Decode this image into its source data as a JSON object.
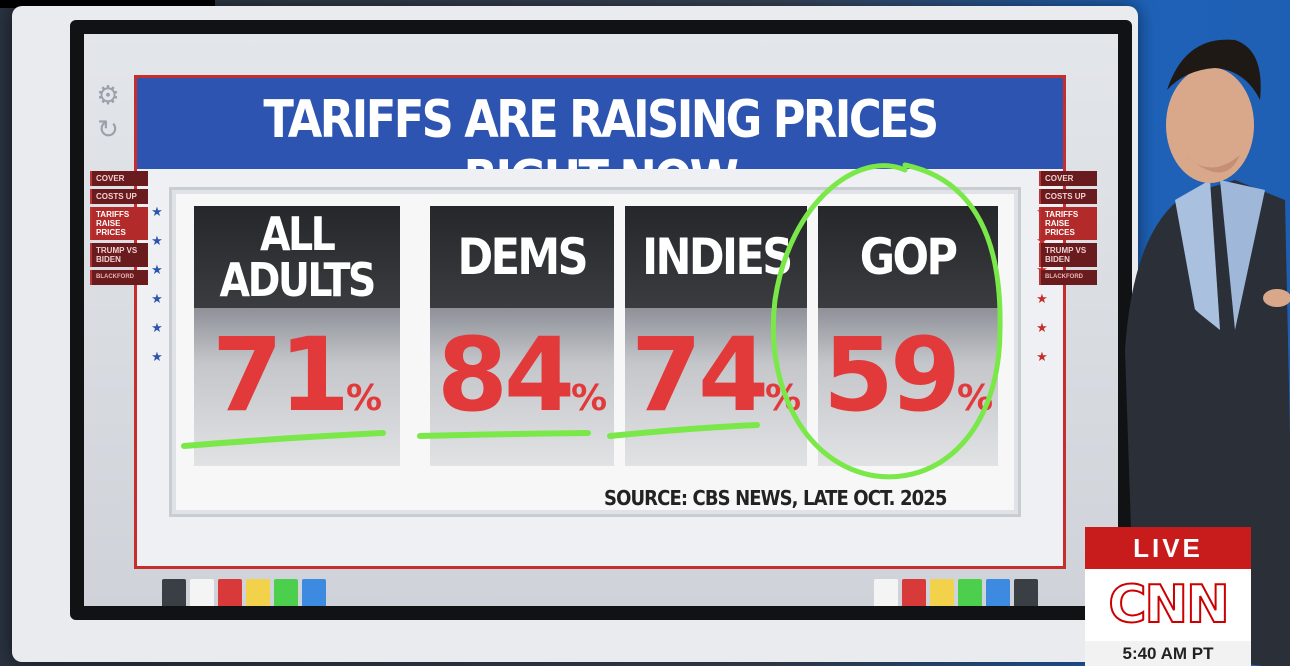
{
  "title": "TARIFFS ARE RAISING PRICES RIGHT NOW",
  "menu_left": [
    "COVER",
    "COSTS UP",
    "TARIFFS RAISE PRICES",
    "TRUMP VS BIDEN",
    "BLACKFORD"
  ],
  "menu_right": [
    "COVER",
    "COSTS UP",
    "TARIFFS RAISE PRICES",
    "TRUMP VS BIDEN",
    "BLACKFORD"
  ],
  "cards": [
    {
      "label": "ALL ADULTS",
      "value": "71",
      "unit": "%"
    },
    {
      "label": "DEMS",
      "value": "84",
      "unit": "%"
    },
    {
      "label": "INDIES",
      "value": "74",
      "unit": "%"
    },
    {
      "label": "GOP",
      "value": "59",
      "unit": "%"
    }
  ],
  "source": "SOURCE: CBS NEWS, LATE OCT. 2025",
  "live": {
    "label": "LIVE",
    "network": "CNN",
    "time": "5:40 AM PT"
  },
  "icons": [
    "gear-icon",
    "refresh-icon",
    "star-icon"
  ],
  "colors": {
    "title_bg": "#2d54b0",
    "accent_red": "#c62d2d",
    "percent_red": "#e2393b",
    "annotation_green": "#7be84a"
  },
  "swatches_left": [
    "#3a3f46",
    "#f4f4f4",
    "#d83a3a",
    "#f1d24a",
    "#4ccf4c",
    "#3c8be0"
  ],
  "swatches_right": [
    "#f4f4f4",
    "#d83a3a",
    "#f1d24a",
    "#4ccf4c",
    "#3c8be0",
    "#3a3f46"
  ]
}
